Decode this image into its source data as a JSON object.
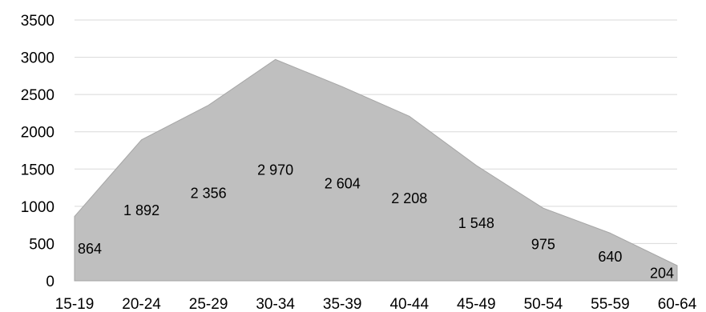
{
  "chart_data": {
    "type": "area",
    "title": "",
    "xlabel": "",
    "ylabel": "",
    "categories": [
      "15-19",
      "20-24",
      "25-29",
      "30-34",
      "35-39",
      "40-44",
      "45-49",
      "50-54",
      "55-59",
      "60-64"
    ],
    "values": [
      864,
      1892,
      2356,
      2970,
      2604,
      2208,
      1548,
      975,
      640,
      204
    ],
    "data_labels": [
      "864",
      "1 892",
      "2 356",
      "2 970",
      "2 604",
      "2 208",
      "1 548",
      "975",
      "640",
      "204"
    ],
    "ylim": [
      0,
      3500
    ],
    "yticks": [
      0,
      500,
      1000,
      1500,
      2000,
      2500,
      3000,
      3500
    ],
    "grid": true,
    "legend": "none",
    "colors": {
      "fill": "#bfbfbf",
      "stroke": "#a6a6a6",
      "grid": "#d9d9d9"
    }
  }
}
